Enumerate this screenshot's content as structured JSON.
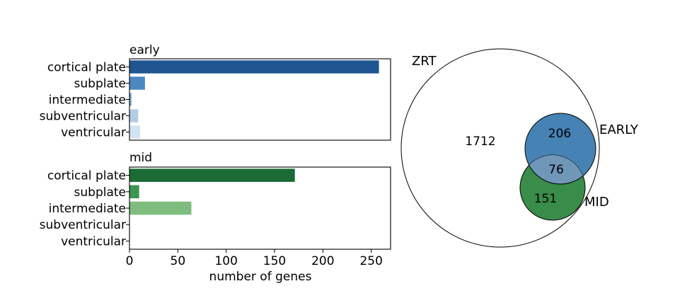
{
  "chart_data": [
    {
      "type": "bar",
      "orientation": "horizontal",
      "title": "early",
      "categories": [
        "cortical plate",
        "subplate",
        "intermediate",
        "subventricular",
        "ventricular"
      ],
      "values": [
        258,
        16,
        2,
        9,
        11
      ],
      "colors": [
        "#1f5591",
        "#4a88c0",
        "#6ba3d0",
        "#b2cde6",
        "#d4e3f2"
      ],
      "xlim": [
        0,
        270
      ]
    },
    {
      "type": "bar",
      "orientation": "horizontal",
      "title": "mid",
      "categories": [
        "cortical plate",
        "subplate",
        "intermediate",
        "subventricular",
        "ventricular"
      ],
      "values": [
        171,
        10,
        64,
        0,
        0
      ],
      "colors": [
        "#1a6b34",
        "#3d9651",
        "#7fbd7f",
        "#c7e5c0",
        "#e8f5e3"
      ],
      "xlim": [
        0,
        270
      ],
      "xticks": [
        0,
        50,
        100,
        150,
        200,
        250
      ],
      "xlabel": "number of genes"
    },
    {
      "type": "venn",
      "sets": [
        {
          "name": "ZRT",
          "color": "#ffffff"
        },
        {
          "name": "EARLY",
          "color": "#4682b4"
        },
        {
          "name": "MID",
          "color": "#3a8c4a"
        }
      ],
      "regions": {
        "zrt_only": "1712",
        "early_only": "206",
        "early_mid": "76",
        "mid_only": "151"
      },
      "overlap_color": "#7096b8"
    }
  ]
}
